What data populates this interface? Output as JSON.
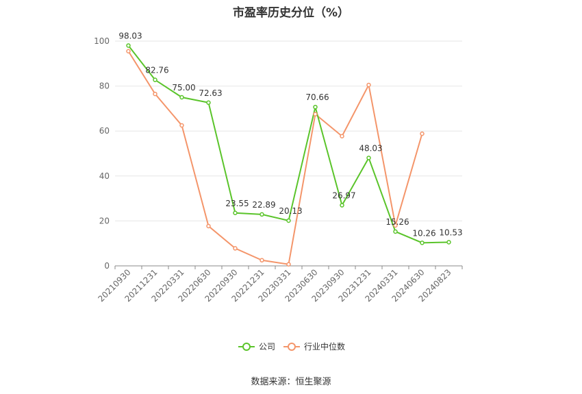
{
  "title": "市盈率历史分位（%）",
  "source": "数据来源：恒生聚源",
  "chart_data": {
    "type": "line",
    "x": [
      "20210930",
      "20211231",
      "20220331",
      "20220630",
      "20220930",
      "20221231",
      "20230331",
      "20230630",
      "20230930",
      "20231231",
      "20240331",
      "20240630",
      "20240823"
    ],
    "ylim": [
      0,
      100
    ],
    "yticks": [
      0,
      20,
      40,
      60,
      80,
      100
    ],
    "grid": true,
    "legend": "bottom",
    "series": [
      {
        "name": "公司",
        "color": "#5ac42a",
        "values": [
          98.03,
          82.76,
          75.0,
          72.63,
          23.55,
          22.89,
          20.13,
          70.66,
          26.97,
          48.03,
          15.26,
          10.26,
          10.53
        ],
        "labels": [
          "98.03",
          "82.76",
          "75.00",
          "72.63",
          "23.55",
          "22.89",
          "20.13",
          "70.66",
          "26.97",
          "48.03",
          "15.26",
          "10.26",
          "10.53"
        ]
      },
      {
        "name": "行业中位数",
        "color": "#f4956a",
        "values": [
          95.5,
          76.5,
          62.5,
          17.7,
          7.8,
          2.5,
          0.7,
          67.5,
          57.7,
          80.5,
          18.0,
          58.8,
          null
        ]
      }
    ]
  }
}
